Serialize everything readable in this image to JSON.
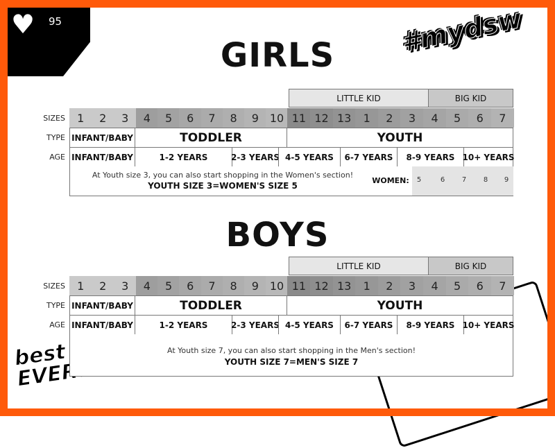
{
  "badge": {
    "icon": "heart-icon",
    "count": "95"
  },
  "hashtag": "#mydsw",
  "logo": {
    "line1": "best of",
    "line2": "EVERYTHING"
  },
  "row_labels": {
    "sizes": "SIZES",
    "type": "TYPE",
    "age": "AGE"
  },
  "colors": {
    "border": "#ff5a0a",
    "little_kid": "#e6e6e6",
    "big_kid": "#c8c8c8",
    "infant_sizes": "#c8c8c8",
    "toddler_sizes": "#b0b0b0",
    "youth_sizes": "#999999"
  },
  "groups": {
    "little_kid": "LITTLE KID",
    "big_kid": "BIG KID"
  },
  "sizes": [
    "1",
    "2",
    "3",
    "4",
    "5",
    "6",
    "7",
    "8",
    "9",
    "10",
    "11",
    "12",
    "13",
    "1",
    "2",
    "3",
    "4",
    "5",
    "6",
    "7"
  ],
  "types": [
    "INFANT/BABY",
    "TODDLER",
    "YOUTH"
  ],
  "ages": [
    "INFANT/BABY",
    "1-2 YEARS",
    "2-3 YEARS",
    "4-5 YEARS",
    "6-7 YEARS",
    "8-9 YEARS",
    "10+ YEARS"
  ],
  "girls": {
    "title": "GIRLS",
    "note": "At Youth size 3, you can also start shopping in the Women's section!",
    "equivalence": "YOUTH SIZE 3=WOMEN'S SIZE 5",
    "women_label": "WOMEN:",
    "women_sizes": [
      "5",
      "6",
      "7",
      "8",
      "9"
    ]
  },
  "boys": {
    "title": "BOYS",
    "note": "At Youth size 7, you can also start shopping in the Men's section!",
    "equivalence": "YOUTH SIZE 7=MEN'S SIZE 7"
  }
}
